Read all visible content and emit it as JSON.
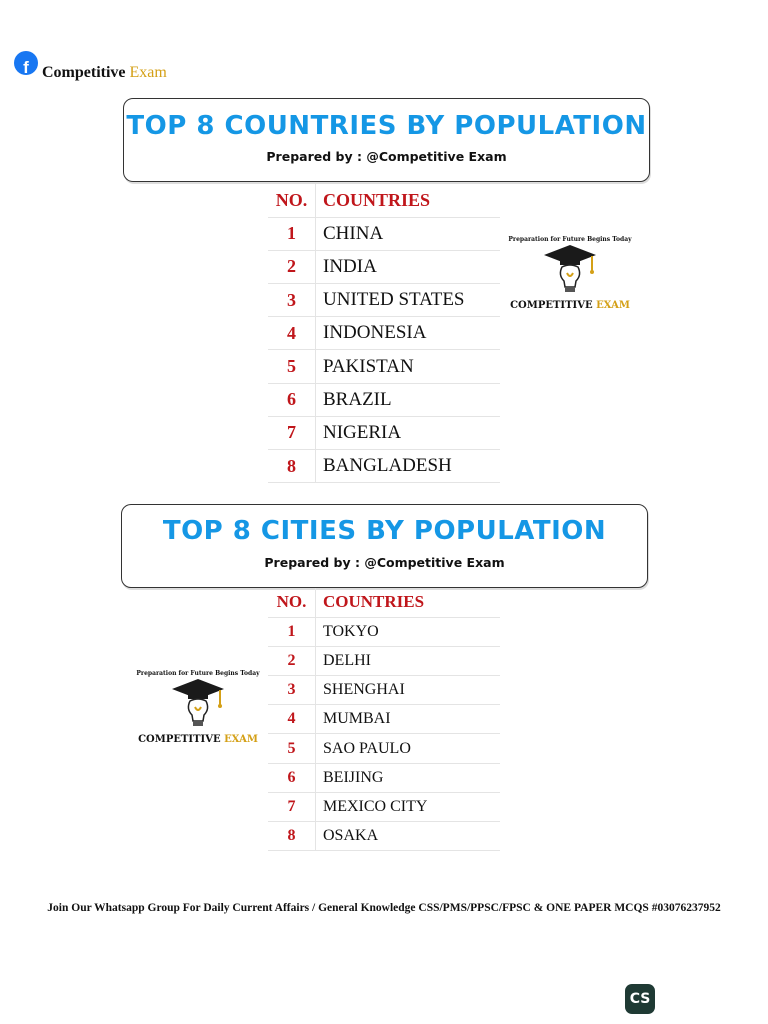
{
  "header": {
    "brand_icon": "facebook-icon",
    "brand_name_part1": "Competitive",
    "brand_name_part2": "Exam"
  },
  "countries_section": {
    "title": "TOP 8 COUNTRIES BY POPULATION",
    "subtitle": "Prepared by : @Competitive Exam",
    "col_no": "NO.",
    "col_name": "COUNTRIES",
    "rows": [
      {
        "no": "1",
        "name": "CHINA"
      },
      {
        "no": "2",
        "name": "INDIA"
      },
      {
        "no": "3",
        "name": "UNITED STATES"
      },
      {
        "no": "4",
        "name": "INDONESIA"
      },
      {
        "no": "5",
        "name": "PAKISTAN"
      },
      {
        "no": "6",
        "name": "BRAZIL"
      },
      {
        "no": "7",
        "name": "NIGERIA"
      },
      {
        "no": "8",
        "name": "BANGLADESH"
      }
    ]
  },
  "cities_section": {
    "title": "TOP 8 CITIES BY POPULATION",
    "subtitle": "Prepared by : @Competitive Exam",
    "col_no": "NO.",
    "col_name": "COUNTRIES",
    "rows": [
      {
        "no": "1",
        "name": "TOKYO"
      },
      {
        "no": "2",
        "name": "DELHI"
      },
      {
        "no": "3",
        "name": "SHENGHAI"
      },
      {
        "no": "4",
        "name": "MUMBAI"
      },
      {
        "no": "5",
        "name": "SAO PAULO"
      },
      {
        "no": "6",
        "name": "BEIJING"
      },
      {
        "no": "7",
        "name": "MEXICO CITY"
      },
      {
        "no": "8",
        "name": "OSAKA"
      }
    ]
  },
  "logo": {
    "tagline": "Preparation for Future Begins Today",
    "name_part1": "COMPETITIVE",
    "name_part2": "EXAM",
    "icon": "lightbulb-graduation-cap-icon",
    "accent_color": "#d4a017"
  },
  "footer": {
    "text": "Join Our Whatsapp Group For Daily Current Affairs / General Knowledge CSS/PMS/PPSC/FPSC & ONE PAPER MCQS #03076237952"
  },
  "scanner_badge": {
    "label": "CS"
  },
  "colors": {
    "title_blue": "#1597e5",
    "number_red": "#c0161b",
    "facebook_blue": "#1877f2"
  }
}
